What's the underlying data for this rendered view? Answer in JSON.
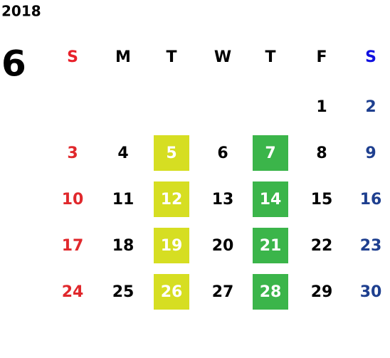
{
  "year": "2018",
  "month": "6",
  "weekdays": [
    "S",
    "M",
    "T",
    "W",
    "T",
    "F",
    "S"
  ],
  "weeks": [
    [
      null,
      null,
      null,
      null,
      null,
      1,
      2
    ],
    [
      3,
      4,
      5,
      6,
      7,
      8,
      9
    ],
    [
      10,
      11,
      12,
      13,
      14,
      15,
      16
    ],
    [
      17,
      18,
      19,
      20,
      21,
      22,
      23
    ],
    [
      24,
      25,
      26,
      27,
      28,
      29,
      30
    ]
  ]
}
